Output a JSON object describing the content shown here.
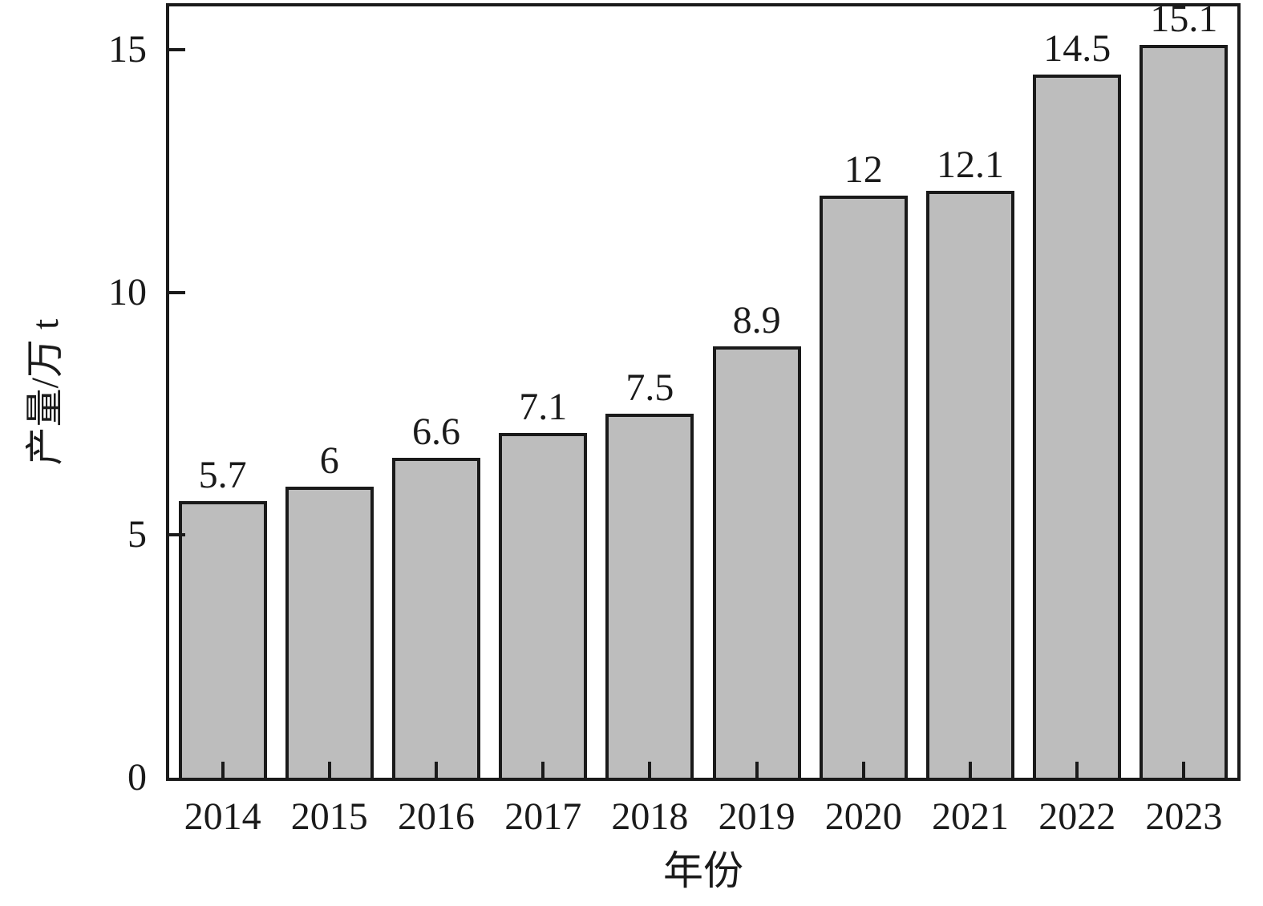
{
  "figure": {
    "background": "#ffffff"
  },
  "chart_data": {
    "type": "bar",
    "title": "",
    "xlabel": "年份",
    "ylabel": "产量/万 t",
    "categories": [
      "2014",
      "2015",
      "2016",
      "2017",
      "2018",
      "2019",
      "2020",
      "2021",
      "2022",
      "2023"
    ],
    "values": [
      5.7,
      6,
      6.6,
      7.1,
      7.5,
      8.9,
      12,
      12.1,
      14.5,
      15.1
    ],
    "value_labels": [
      "5.7",
      "6",
      "6.6",
      "7.1",
      "7.5",
      "8.9",
      "12",
      "12.1",
      "14.5",
      "15.1"
    ],
    "yticks": [
      0,
      5,
      10,
      15
    ],
    "ylim": [
      0,
      15.9
    ],
    "grid": false,
    "legend": "none",
    "colors": {
      "bar_fill": "#bdbdbd",
      "bar_border": "#1a1a1a",
      "axis": "#1a1a1a",
      "text": "#1a1a1a"
    }
  }
}
